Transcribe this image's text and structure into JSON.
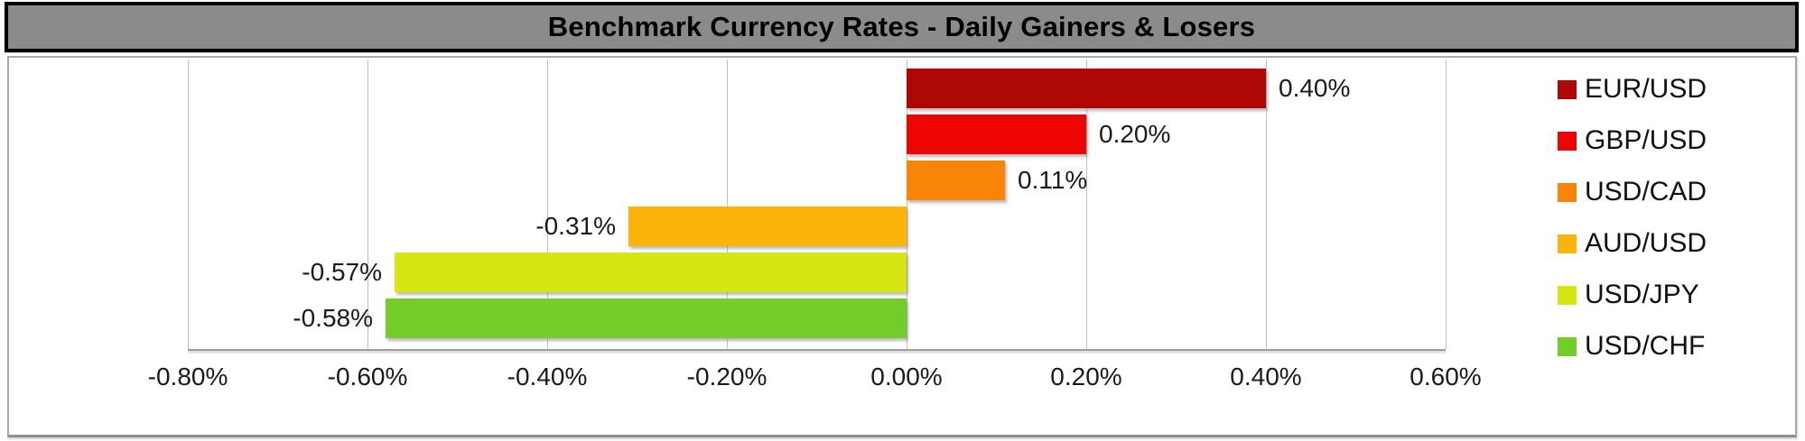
{
  "title": "Benchmark Currency Rates - Daily Gainers & Losers",
  "colors": {
    "title_bar_bg": "#8B8B8B",
    "title_bar_border": "#000000",
    "title_text": "#000000",
    "gridline": "#BFBFBF",
    "axis_line": "#9E9E9E",
    "chart_border": "#A8A8A8"
  },
  "chart_data": {
    "type": "bar",
    "orientation": "horizontal",
    "title": "Benchmark Currency Rates - Daily Gainers & Losers",
    "categories": [
      "EUR/USD",
      "GBP/USD",
      "USD/CAD",
      "AUD/USD",
      "USD/JPY",
      "USD/CHF"
    ],
    "values": [
      0.4,
      0.2,
      0.11,
      -0.31,
      -0.57,
      -0.58
    ],
    "value_labels": [
      "0.40%",
      "0.20%",
      "0.11%",
      "-0.31%",
      "-0.57%",
      "-0.58%"
    ],
    "series_colors": [
      "#AF0606",
      "#EF0404",
      "#F88408",
      "#FAB40A",
      "#D6E612",
      "#72CE26"
    ],
    "xlabel": "",
    "ylabel": "",
    "xlim": [
      -0.8,
      0.6
    ],
    "tick_step": 0.2,
    "tick_labels": [
      "-0.80%",
      "-0.60%",
      "-0.40%",
      "-0.20%",
      "0.00%",
      "0.20%",
      "0.40%",
      "0.60%"
    ],
    "grid": true,
    "legend_position": "right",
    "legend": [
      "EUR/USD",
      "GBP/USD",
      "USD/CAD",
      "AUD/USD",
      "USD/JPY",
      "USD/CHF"
    ]
  }
}
